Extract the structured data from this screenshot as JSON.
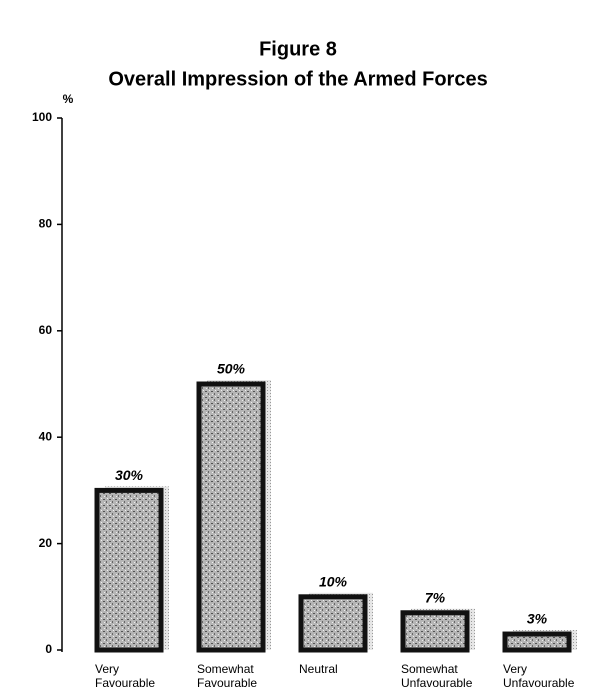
{
  "chart_data": {
    "type": "bar",
    "title": "Figure 8",
    "subtitle": "Overall Impression of the Armed Forces",
    "y_label": "%",
    "categories": [
      "Very Favourable",
      "Somewhat Favourable",
      "Neutral",
      "Somewhat Unfavourable",
      "Very Unfavourable"
    ],
    "values": [
      30,
      50,
      10,
      7,
      3
    ],
    "value_labels": [
      "30%",
      "50%",
      "10%",
      "7%",
      "3%"
    ],
    "color": "#9a9a9a",
    "ylim": [
      0,
      100
    ],
    "yticks": [
      0,
      20,
      40,
      60,
      80,
      100
    ]
  }
}
